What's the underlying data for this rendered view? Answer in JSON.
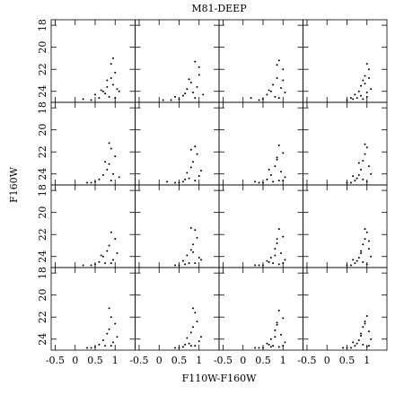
{
  "chart_data": {
    "type": "scatter",
    "title": "M81-DEEP",
    "xlabel": "F110W-F160W",
    "ylabel": "F160W",
    "xlim": [
      -0.6,
      1.5
    ],
    "ylim": [
      17.5,
      25.0
    ],
    "y_inverted": true,
    "xticks": [
      -0.5,
      0,
      0.5,
      1
    ],
    "yticks": [
      18,
      20,
      22,
      24
    ],
    "color": "#000000",
    "panels": [
      {
        "x": [
          0.9,
          1.0,
          0.8,
          0.95,
          0.7,
          0.85,
          1.05,
          0.6,
          0.4,
          0.9,
          0.75,
          1.1,
          0.5,
          0.95,
          0.2,
          0.8,
          1.0,
          0.65
        ],
        "y": [
          21.5,
          22.3,
          23.0,
          23.4,
          24.0,
          24.5,
          23.8,
          24.6,
          24.8,
          22.8,
          24.2,
          24.0,
          24.3,
          21.0,
          24.7,
          23.6,
          24.6,
          23.9
        ]
      },
      {
        "x": [
          0.9,
          1.0,
          0.8,
          0.7,
          0.6,
          0.95,
          0.5,
          0.85,
          1.1,
          0.3,
          0.75,
          0.9,
          0.65,
          1.0,
          0.4,
          0.1
        ],
        "y": [
          21.3,
          22.5,
          23.2,
          23.8,
          24.4,
          23.6,
          24.7,
          24.1,
          24.3,
          24.8,
          22.9,
          24.6,
          24.2,
          21.8,
          24.5,
          24.8
        ]
      },
      {
        "x": [
          0.9,
          1.0,
          0.85,
          0.75,
          0.95,
          0.6,
          0.8,
          1.05,
          0.5,
          0.7,
          0.9,
          0.4,
          1.0,
          0.65,
          0.2,
          0.85
        ],
        "y": [
          21.2,
          22.0,
          22.8,
          23.4,
          23.7,
          24.3,
          24.5,
          24.1,
          24.7,
          24.0,
          24.6,
          24.8,
          23.0,
          23.9,
          24.6,
          21.6
        ]
      },
      {
        "x": [
          1.0,
          1.05,
          0.95,
          0.9,
          0.85,
          1.1,
          0.8,
          0.7,
          1.0,
          0.6,
          0.9,
          0.75,
          1.05,
          0.5,
          0.95,
          0.65,
          0.85,
          1.0
        ],
        "y": [
          21.5,
          22.0,
          22.6,
          23.0,
          23.5,
          23.8,
          24.0,
          24.3,
          24.5,
          24.6,
          24.7,
          24.6,
          22.8,
          24.8,
          23.3,
          24.7,
          24.4,
          24.1
        ]
      },
      {
        "x": [
          0.9,
          1.0,
          0.85,
          0.8,
          0.7,
          0.95,
          0.6,
          0.5,
          0.4,
          0.9,
          1.1,
          0.75,
          0.3,
          0.85
        ],
        "y": [
          21.7,
          22.4,
          23.1,
          23.6,
          24.1,
          24.0,
          24.5,
          24.7,
          24.8,
          24.6,
          24.3,
          22.9,
          24.8,
          21.2
        ]
      },
      {
        "x": [
          0.9,
          0.95,
          0.85,
          0.8,
          0.7,
          1.0,
          0.65,
          0.6,
          0.75,
          0.5,
          1.05,
          0.9,
          0.4,
          0.8,
          0.2
        ],
        "y": [
          21.5,
          22.2,
          22.9,
          23.4,
          23.9,
          24.2,
          24.5,
          24.7,
          24.4,
          24.8,
          23.7,
          24.6,
          24.8,
          21.8,
          24.7
        ]
      },
      {
        "x": [
          0.9,
          1.0,
          0.85,
          0.8,
          0.95,
          0.7,
          0.6,
          0.75,
          1.05,
          0.5,
          0.9,
          0.65,
          0.4,
          0.85,
          1.0,
          0.3
        ],
        "y": [
          21.4,
          22.1,
          22.7,
          23.3,
          23.8,
          24.1,
          24.5,
          24.7,
          24.3,
          24.8,
          24.6,
          23.6,
          24.8,
          22.5,
          24.6,
          24.7
        ]
      },
      {
        "x": [
          1.0,
          0.95,
          0.9,
          1.05,
          0.85,
          0.8,
          1.1,
          0.75,
          0.7,
          1.0,
          0.6,
          0.9,
          0.5,
          0.95,
          0.65,
          0.8
        ],
        "y": [
          21.6,
          22.2,
          22.8,
          23.3,
          23.6,
          24.1,
          24.0,
          24.4,
          24.6,
          24.7,
          24.8,
          24.5,
          24.8,
          21.3,
          24.2,
          23.0
        ]
      },
      {
        "x": [
          0.9,
          1.0,
          0.85,
          0.8,
          0.7,
          0.95,
          0.6,
          0.5,
          0.75,
          0.4,
          1.05,
          0.9,
          0.65,
          0.2
        ],
        "y": [
          21.8,
          22.4,
          23.0,
          23.5,
          24.0,
          24.3,
          24.5,
          24.7,
          24.6,
          24.8,
          23.7,
          24.6,
          23.9,
          24.8
        ]
      },
      {
        "x": [
          0.9,
          0.95,
          0.85,
          0.8,
          0.7,
          1.0,
          0.6,
          0.75,
          0.65,
          0.5,
          0.9,
          1.05,
          0.4,
          0.8,
          0.85
        ],
        "y": [
          21.6,
          22.3,
          22.9,
          23.4,
          23.9,
          24.1,
          24.4,
          24.6,
          24.7,
          24.8,
          24.6,
          24.3,
          24.8,
          21.4,
          23.6
        ]
      },
      {
        "x": [
          0.9,
          1.0,
          0.85,
          0.8,
          0.95,
          0.7,
          0.6,
          0.75,
          1.05,
          0.5,
          0.9,
          0.65,
          0.4,
          0.85,
          1.0,
          0.3,
          0.8
        ],
        "y": [
          21.5,
          22.2,
          22.8,
          23.3,
          23.7,
          24.1,
          24.4,
          24.6,
          24.3,
          24.8,
          24.7,
          24.5,
          24.8,
          22.4,
          24.6,
          24.8,
          23.9
        ]
      },
      {
        "x": [
          1.0,
          0.95,
          0.9,
          1.05,
          0.85,
          0.8,
          1.1,
          0.75,
          0.7,
          1.0,
          0.6,
          0.9,
          0.5,
          0.95,
          0.65,
          0.85,
          1.05
        ],
        "y": [
          21.8,
          22.4,
          22.9,
          23.3,
          23.7,
          24.1,
          24.0,
          24.4,
          24.6,
          24.7,
          24.8,
          24.5,
          24.8,
          21.5,
          24.3,
          23.5,
          22.6
        ]
      },
      {
        "x": [
          0.9,
          1.0,
          0.85,
          0.8,
          0.7,
          0.95,
          0.6,
          0.5,
          0.75,
          0.4,
          1.05,
          0.9,
          0.3,
          0.85
        ],
        "y": [
          22.0,
          22.6,
          23.1,
          23.5,
          24.1,
          24.3,
          24.5,
          24.7,
          24.6,
          24.8,
          23.8,
          24.6,
          24.8,
          21.2
        ]
      },
      {
        "x": [
          0.9,
          0.95,
          0.85,
          0.8,
          0.7,
          1.0,
          0.65,
          0.6,
          0.75,
          0.5,
          1.05,
          0.9,
          0.4,
          0.85,
          0.8
        ],
        "y": [
          21.6,
          22.4,
          22.9,
          23.4,
          23.9,
          24.2,
          24.5,
          24.7,
          24.4,
          24.8,
          23.8,
          24.6,
          24.8,
          21.2,
          24.6
        ]
      },
      {
        "x": [
          0.9,
          1.0,
          0.85,
          0.8,
          0.95,
          0.7,
          0.6,
          0.75,
          1.05,
          0.5,
          0.9,
          0.65,
          0.4,
          0.85,
          1.0,
          0.3,
          0.8,
          0.7
        ],
        "y": [
          21.4,
          22.1,
          22.7,
          23.2,
          23.6,
          24.0,
          24.4,
          24.6,
          24.3,
          24.8,
          24.7,
          24.5,
          24.8,
          22.5,
          24.6,
          24.8,
          23.8,
          24.7
        ]
      },
      {
        "x": [
          1.0,
          0.95,
          0.9,
          1.05,
          0.85,
          0.8,
          1.1,
          0.75,
          0.7,
          1.0,
          0.6,
          0.9,
          0.5,
          0.95,
          0.65,
          0.85,
          1.05,
          0.4
        ],
        "y": [
          21.9,
          22.4,
          22.9,
          23.3,
          23.7,
          24.1,
          24.0,
          24.4,
          24.6,
          24.7,
          24.8,
          24.5,
          24.8,
          22.6,
          24.3,
          23.5,
          24.6,
          24.8
        ]
      }
    ]
  }
}
